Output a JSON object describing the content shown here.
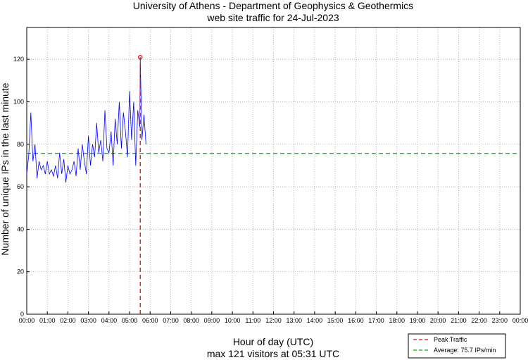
{
  "chart_data": {
    "type": "line",
    "title": "University of Athens - Department of Geophysics & Geothermics",
    "subtitle": "web site traffic for 24-Jul-2023",
    "xlabel": "Hour of day (UTC)",
    "ylabel": "Number of unique IPs in the last minute",
    "footer": "max 121 visitors at 05:31 UTC",
    "xlim": [
      0,
      24
    ],
    "ylim": [
      0,
      135
    ],
    "x_ticks": [
      "00:00",
      "01:00",
      "02:00",
      "03:00",
      "04:00",
      "05:00",
      "06:00",
      "07:00",
      "08:00",
      "09:00",
      "10:00",
      "11:00",
      "12:00",
      "13:00",
      "14:00",
      "15:00",
      "16:00",
      "17:00",
      "18:00",
      "19:00",
      "20:00",
      "21:00",
      "22:00",
      "23:00",
      "00:00"
    ],
    "y_ticks": [
      0,
      20,
      40,
      60,
      80,
      100,
      120
    ],
    "grid": true,
    "legend_position": "bottom-right",
    "series": [
      {
        "color": "#0000ff",
        "x": [
          0.0,
          0.1,
          0.2,
          0.3,
          0.4,
          0.5,
          0.6,
          0.7,
          0.8,
          0.9,
          1.0,
          1.1,
          1.2,
          1.3,
          1.4,
          1.5,
          1.6,
          1.7,
          1.8,
          1.9,
          2.0,
          2.1,
          2.2,
          2.3,
          2.4,
          2.5,
          2.6,
          2.7,
          2.8,
          2.9,
          3.0,
          3.1,
          3.2,
          3.3,
          3.4,
          3.5,
          3.6,
          3.7,
          3.8,
          3.9,
          4.0,
          4.1,
          4.2,
          4.3,
          4.4,
          4.5,
          4.6,
          4.7,
          4.8,
          4.9,
          5.0,
          5.1,
          5.2,
          5.3,
          5.4,
          5.5,
          5.52,
          5.6,
          5.7,
          5.8
        ],
        "y": [
          66,
          75,
          95,
          72,
          80,
          64,
          72,
          68,
          70,
          66,
          72,
          66,
          68,
          65,
          70,
          64,
          76,
          66,
          73,
          62,
          70,
          66,
          68,
          72,
          65,
          78,
          68,
          80,
          72,
          66,
          84,
          70,
          80,
          74,
          90,
          76,
          82,
          72,
          96,
          78,
          76,
          86,
          70,
          92,
          80,
          100,
          78,
          95,
          86,
          74,
          105,
          82,
          100,
          70,
          96,
          88,
          121,
          82,
          94,
          80
        ]
      }
    ],
    "peak": {
      "x": 5.52,
      "y": 121,
      "label": "Peak Traffic",
      "color": "#ff0000"
    },
    "average": {
      "y": 75.7,
      "label": "Average: 75.7 IPs/min",
      "color": "#00aa00"
    }
  }
}
